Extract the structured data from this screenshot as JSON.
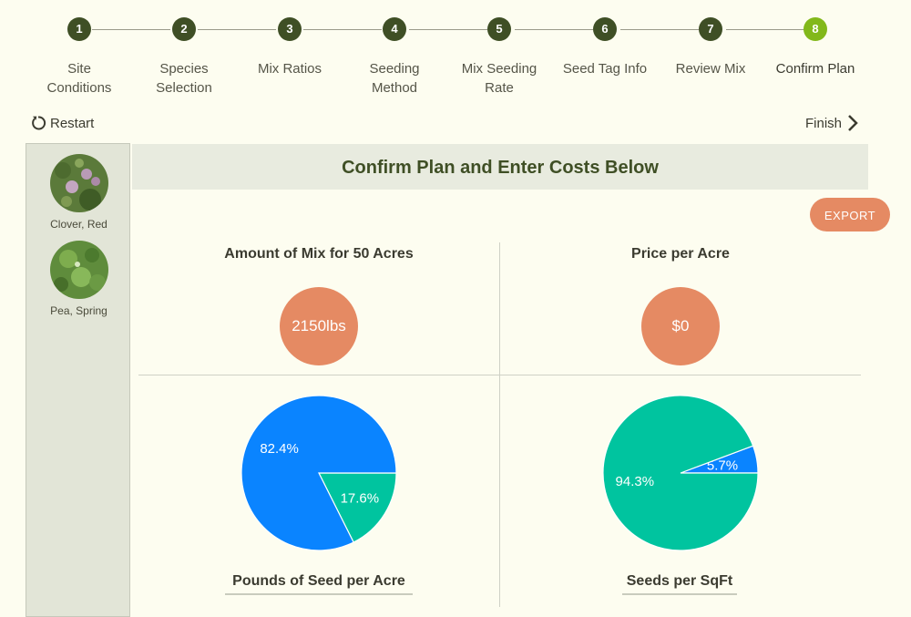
{
  "stepper": {
    "steps": [
      {
        "num": "1",
        "line1": "Site",
        "line2": "Conditions"
      },
      {
        "num": "2",
        "line1": "Species",
        "line2": "Selection"
      },
      {
        "num": "3",
        "line1": "Mix Ratios",
        "line2": ""
      },
      {
        "num": "4",
        "line1": "Seeding",
        "line2": "Method"
      },
      {
        "num": "5",
        "line1": "Mix Seeding",
        "line2": "Rate"
      },
      {
        "num": "6",
        "line1": "Seed Tag Info",
        "line2": ""
      },
      {
        "num": "7",
        "line1": "Review Mix",
        "line2": ""
      },
      {
        "num": "8",
        "line1": "Confirm Plan",
        "line2": ""
      }
    ],
    "active_step": 8
  },
  "nav": {
    "restart_label": "Restart",
    "finish_label": "Finish"
  },
  "sidebar": {
    "species": [
      {
        "name": "Clover, Red"
      },
      {
        "name": "Pea, Spring"
      }
    ]
  },
  "main": {
    "title": "Confirm Plan and Enter Costs Below",
    "export_label": "EXPORT",
    "amount": {
      "title": "Amount of Mix for 50 Acres",
      "value": "2150lbs"
    },
    "price": {
      "title": "Price per Acre",
      "value": "$0"
    }
  },
  "colors": {
    "blue": "#0a84ff",
    "teal": "#00c49f",
    "orange": "#e58a63",
    "dark_green": "#3f4f25",
    "active_green": "#82b81a"
  },
  "chart_data": [
    {
      "type": "pie",
      "title": "Pounds of Seed per Acre",
      "slices": [
        {
          "name": "Clover, Red",
          "value": 82.4,
          "label": "82.4%",
          "color": "#0a84ff"
        },
        {
          "name": "Pea, Spring",
          "value": 17.6,
          "label": "17.6%",
          "color": "#00c49f"
        }
      ]
    },
    {
      "type": "pie",
      "title": "Seeds per SqFt",
      "slices": [
        {
          "name": "Clover, Red",
          "value": 94.3,
          "label": "94.3%",
          "color": "#00c49f"
        },
        {
          "name": "Pea, Spring",
          "value": 5.7,
          "label": "5.7%",
          "color": "#0a84ff"
        }
      ]
    }
  ]
}
